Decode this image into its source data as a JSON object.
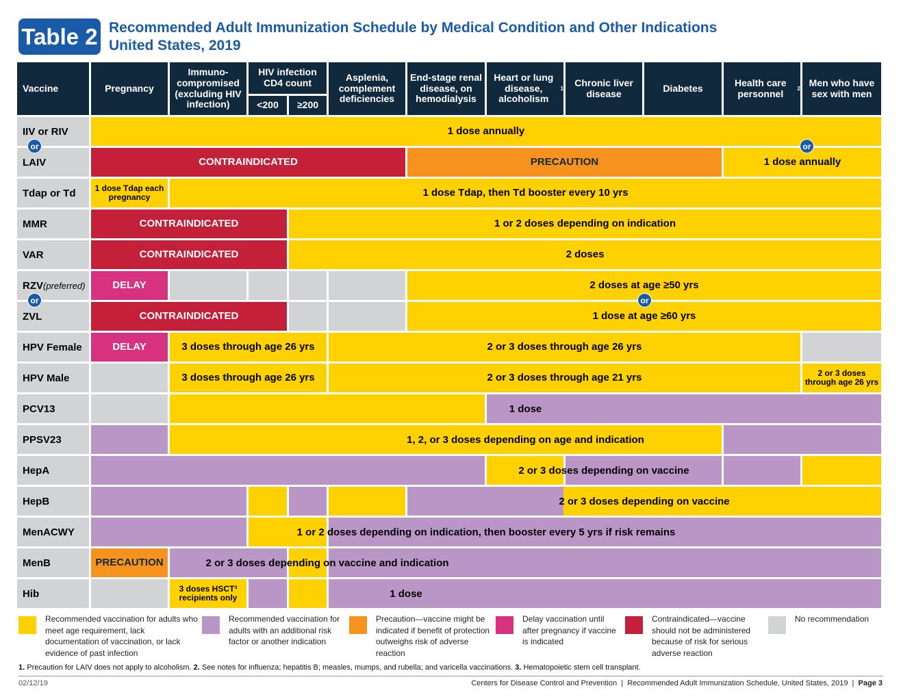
{
  "badge": "Table 2",
  "title_line1": "Recommended Adult Immunization Schedule by Medical Condition and Other Indications",
  "title_line2": "United States, 2019",
  "header": {
    "vaccine": "Vaccine",
    "pregnancy": "Pregnancy",
    "immuno": "Immuno-compromised (excluding HIV infection)",
    "hiv": "HIV infection CD4 count",
    "hiv_lt": "<200",
    "hiv_ge": "≥200",
    "asplenia": "Asplenia, complement deficiencies",
    "renal": "End-stage renal disease, on hemodialysis",
    "heart": "Heart or lung disease, alcoholism",
    "heart_sup": "1",
    "liver": "Chronic liver disease",
    "diabetes": "Diabetes",
    "hcp": "Health care personnel",
    "hcp_sup": "2",
    "msm": "Men who have sex with men"
  },
  "or_label": "or",
  "rows": [
    {
      "key": "iiv",
      "label": "IIV or RIV"
    },
    {
      "key": "laiv",
      "label": "LAIV"
    },
    {
      "key": "tdap",
      "label": "Tdap or Td"
    },
    {
      "key": "mmr",
      "label": "MMR"
    },
    {
      "key": "var",
      "label": "VAR"
    },
    {
      "key": "rzv",
      "label": "RZV",
      "note": "(preferred)"
    },
    {
      "key": "zvl",
      "label": "ZVL"
    },
    {
      "key": "hpvf",
      "label": "HPV Female"
    },
    {
      "key": "hpvm",
      "label": "HPV Male"
    },
    {
      "key": "pcv13",
      "label": "PCV13"
    },
    {
      "key": "ppsv23",
      "label": "PPSV23"
    },
    {
      "key": "hepa",
      "label": "HepA"
    },
    {
      "key": "hepb",
      "label": "HepB"
    },
    {
      "key": "menacwy",
      "label": "MenACWY"
    },
    {
      "key": "menb",
      "label": "MenB"
    },
    {
      "key": "hib",
      "label": "Hib"
    }
  ],
  "cells": {
    "iiv_all": "1 dose annually",
    "laiv_contra": "CONTRAINDICATED",
    "laiv_prec": "PRECAUTION",
    "laiv_annual": "1 dose annually",
    "tdap_preg": "1 dose Tdap each pregnancy",
    "tdap_rest": "1 dose Tdap, then Td booster every 10 yrs",
    "mmr_contra": "CONTRAINDICATED",
    "mmr_rest": "1 or 2 doses depending on indication",
    "var_contra": "CONTRAINDICATED",
    "var_rest": "2 doses",
    "rzv_delay": "DELAY",
    "rzv_rest": "2 doses at age ≥50 yrs",
    "zvl_contra": "CONTRAINDICATED",
    "zvl_rest": "1 dose at age ≥60 yrs",
    "hpvf_delay": "DELAY",
    "hpvf_immuno": "3 doses through age 26 yrs",
    "hpvf_rest": "2 or 3 doses through age 26 yrs",
    "hpvm_immuno": "3 doses through age 26 yrs",
    "hpvm_rest": "2 or 3 doses through age 21 yrs",
    "hpvm_msm": "2 or 3 doses through age 26 yrs",
    "pcv13": "1 dose",
    "ppsv23": "1, 2, or 3 doses depending on age and indication",
    "hepa": "2 or 3 doses depending on vaccine",
    "hepb": "2 or 3 doses depending on vaccine",
    "menacwy": "1 or 2 doses depending on indication, then booster every 5 yrs if risk remains",
    "menb_prec": "PRECAUTION",
    "menb": "2 or 3 doses depending on vaccine and indication",
    "hib_immuno": "3 doses HSCT³ recipients only",
    "hib": "1 dose"
  },
  "colors": {
    "yellow": "#ffd100",
    "purple": "#b996c6",
    "orange": "#f6921e",
    "red": "#c4203a",
    "magenta": "#d7327f",
    "gray": "#d2d3d5",
    "navy": "#10293c",
    "blue": "#1a5ba8"
  },
  "legend": [
    {
      "color": "yellow",
      "text": "Recommended vaccination for adults who meet age requirement, lack documentation of vaccination, or lack evidence of past infection"
    },
    {
      "color": "purple",
      "text": "Recommended vaccination for adults with an additional risk factor or another indication"
    },
    {
      "color": "orange",
      "text": "Precaution—vaccine might be indicated if benefit of protection outweighs risk of adverse reaction"
    },
    {
      "color": "magenta",
      "text": "Delay vaccination until after pregnancy if vaccine is indicated"
    },
    {
      "color": "red",
      "text": "Contraindicated—vaccine should not be administered because of risk for serious adverse reaction"
    },
    {
      "color": "gray",
      "text": "No recommendation"
    }
  ],
  "footnote": {
    "n1": "1.",
    "t1": " Precaution for LAIV does not apply to alcoholism. ",
    "n2": "2.",
    "t2": " See notes for influenza; hepatitis B; measles, mumps, and rubella; and varicella vaccinations. ",
    "n3": "3.",
    "t3": " Hematopoietic stem cell transplant."
  },
  "footer": {
    "date": "02/12/19",
    "org": "Centers for Disease Control and Prevention",
    "doc": "Recommended Adult Immunization Schedule, United States, 2019",
    "page": "Page 3"
  }
}
